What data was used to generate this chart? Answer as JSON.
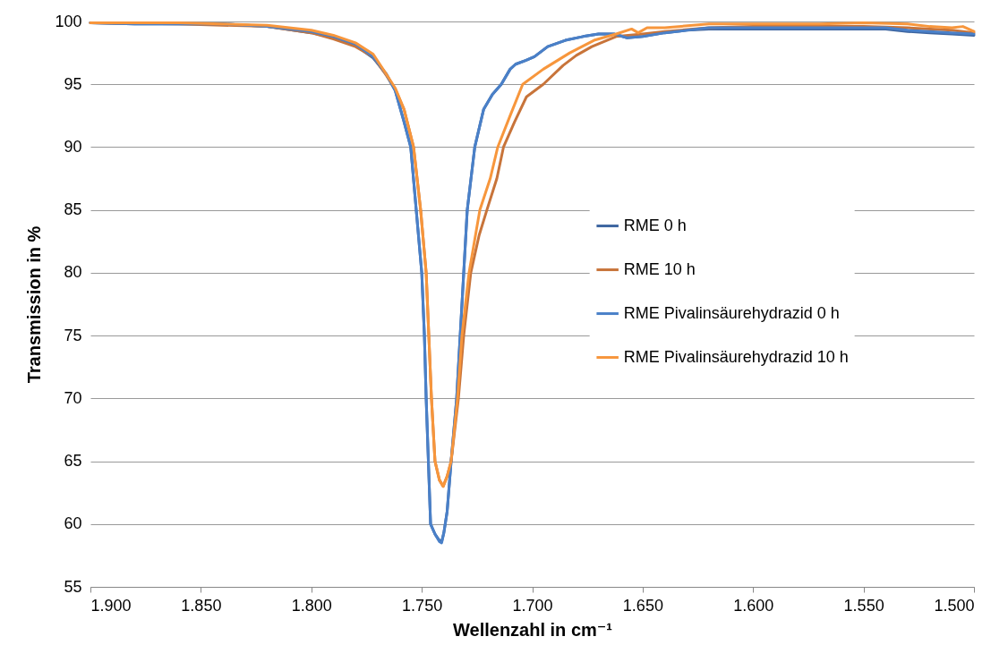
{
  "chart_data": {
    "type": "line",
    "xlabel": "Wellenzahl in cm⁻¹",
    "ylabel": "Transmission in %",
    "xlim": [
      1900,
      1500
    ],
    "xticks": [
      {
        "value": 1900,
        "label": "1.900"
      },
      {
        "value": 1850,
        "label": "1.850"
      },
      {
        "value": 1800,
        "label": "1.800"
      },
      {
        "value": 1750,
        "label": "1.750"
      },
      {
        "value": 1700,
        "label": "1.700"
      },
      {
        "value": 1650,
        "label": "1.650"
      },
      {
        "value": 1600,
        "label": "1.600"
      },
      {
        "value": 1550,
        "label": "1.550"
      },
      {
        "value": 1500,
        "label": "1.500"
      }
    ],
    "ylim": [
      55,
      100
    ],
    "yticks": [
      55,
      60,
      65,
      70,
      75,
      80,
      85,
      90,
      95,
      100
    ],
    "grid": "y",
    "legend": "right",
    "marker": "none",
    "line_style": "solid",
    "series": [
      {
        "name": "RME 0 h",
        "color": "#3d65a0",
        "x": [
          1900,
          1880,
          1860,
          1840,
          1820,
          1800,
          1790,
          1780,
          1772,
          1766,
          1762,
          1758,
          1755,
          1752.5,
          1750,
          1748.8,
          1748,
          1747,
          1746,
          1744,
          1742,
          1741,
          1740,
          1738.5,
          1736.7,
          1734.2,
          1732.6,
          1731,
          1729.4,
          1726,
          1722,
          1718,
          1714,
          1710,
          1707.5,
          1703,
          1699,
          1693,
          1685,
          1677,
          1670,
          1663,
          1657,
          1650,
          1640,
          1630,
          1620,
          1600,
          1580,
          1560,
          1540,
          1530,
          1520,
          1510,
          1500
        ],
        "values": [
          99.9,
          99.8,
          99.8,
          99.8,
          99.6,
          99.1,
          98.7,
          98.1,
          97.1,
          95.8,
          94.5,
          92,
          90,
          85,
          80,
          75,
          70,
          65,
          60,
          59.2,
          58.7,
          58.6,
          59.3,
          61,
          65,
          70,
          75,
          80,
          85,
          90,
          93,
          94.2,
          95,
          96.2,
          96.6,
          96.9,
          97.2,
          98,
          98.5,
          98.8,
          99,
          99,
          98.7,
          98.8,
          99.1,
          99.3,
          99.4,
          99.4,
          99.4,
          99.4,
          99.4,
          99.2,
          99.1,
          99.0,
          98.9
        ]
      },
      {
        "name": "RME 10 h",
        "color": "#c8743a",
        "x": [
          1900,
          1860,
          1820,
          1800,
          1790,
          1780,
          1772,
          1766,
          1762,
          1758,
          1753.7,
          1750.5,
          1748,
          1746.8,
          1745.6,
          1744,
          1742,
          1740.3,
          1738.5,
          1736.7,
          1733.4,
          1731,
          1727.8,
          1724,
          1720.5,
          1716,
          1713,
          1708,
          1702.6,
          1695,
          1686,
          1680,
          1673,
          1662,
          1650,
          1640,
          1620,
          1600,
          1570,
          1550,
          1530,
          1510,
          1500
        ],
        "values": [
          99.9,
          99.8,
          99.6,
          99.1,
          98.6,
          98.0,
          97.2,
          95.7,
          94.6,
          93,
          90,
          85,
          80,
          75,
          70,
          65,
          63.5,
          63,
          63.8,
          65,
          70,
          75,
          80,
          83,
          85,
          87.5,
          90,
          92,
          94,
          95,
          96.5,
          97.3,
          98,
          98.8,
          99,
          99.2,
          99.5,
          99.6,
          99.6,
          99.6,
          99.5,
          99.3,
          99.1
        ]
      },
      {
        "name": "RME Pivalinsäurehydrazid 0 h",
        "color": "#4a80c8",
        "x": [
          1900,
          1880,
          1860,
          1840,
          1820,
          1800,
          1790,
          1780,
          1772,
          1766,
          1762,
          1758,
          1755,
          1752.5,
          1750,
          1748.8,
          1748,
          1747,
          1746,
          1744,
          1742,
          1741,
          1740,
          1738.5,
          1736.7,
          1734.2,
          1732.6,
          1731,
          1729.4,
          1726,
          1722,
          1718,
          1714,
          1710,
          1707.5,
          1703,
          1699,
          1693,
          1685,
          1677,
          1670,
          1663,
          1657,
          1650,
          1640,
          1630,
          1620,
          1600,
          1580,
          1560,
          1540,
          1530,
          1520,
          1510,
          1500
        ],
        "values": [
          99.9,
          99.8,
          99.8,
          99.8,
          99.6,
          99.2,
          98.8,
          98.2,
          97.2,
          95.8,
          94.5,
          92,
          90,
          85,
          80,
          75,
          70,
          65,
          60,
          59.2,
          58.6,
          58.5,
          59.3,
          61,
          65,
          70,
          75,
          80,
          85,
          90,
          93,
          94.2,
          95,
          96.2,
          96.6,
          96.9,
          97.2,
          98,
          98.5,
          98.8,
          99,
          99,
          98.7,
          98.8,
          99.1,
          99.3,
          99.5,
          99.5,
          99.5,
          99.5,
          99.5,
          99.3,
          99.2,
          99.1,
          99.0
        ]
      },
      {
        "name": "RME Pivalinsäurehydrazid 10 h",
        "color": "#f7963c",
        "x": [
          1900,
          1860,
          1820,
          1800,
          1790,
          1780,
          1772,
          1766,
          1762,
          1758,
          1753.7,
          1750.5,
          1748,
          1746.8,
          1745.6,
          1744,
          1742,
          1740.3,
          1738.5,
          1736.7,
          1733.8,
          1731.8,
          1728.6,
          1723.7,
          1719,
          1715.6,
          1710,
          1704.3,
          1695,
          1683,
          1672,
          1662,
          1655,
          1652,
          1648,
          1640,
          1620,
          1600,
          1570,
          1550,
          1530,
          1520,
          1510,
          1505,
          1500
        ],
        "values": [
          99.9,
          99.9,
          99.7,
          99.3,
          98.9,
          98.3,
          97.4,
          95.8,
          94.7,
          93,
          90,
          85,
          80,
          75,
          70,
          65,
          63.5,
          63,
          63.8,
          65,
          70,
          75,
          80,
          85,
          87.5,
          90,
          92.5,
          95,
          96.2,
          97.5,
          98.5,
          99,
          99.4,
          99.1,
          99.5,
          99.5,
          99.8,
          99.8,
          99.8,
          99.9,
          99.8,
          99.6,
          99.5,
          99.6,
          99.2
        ]
      }
    ]
  }
}
